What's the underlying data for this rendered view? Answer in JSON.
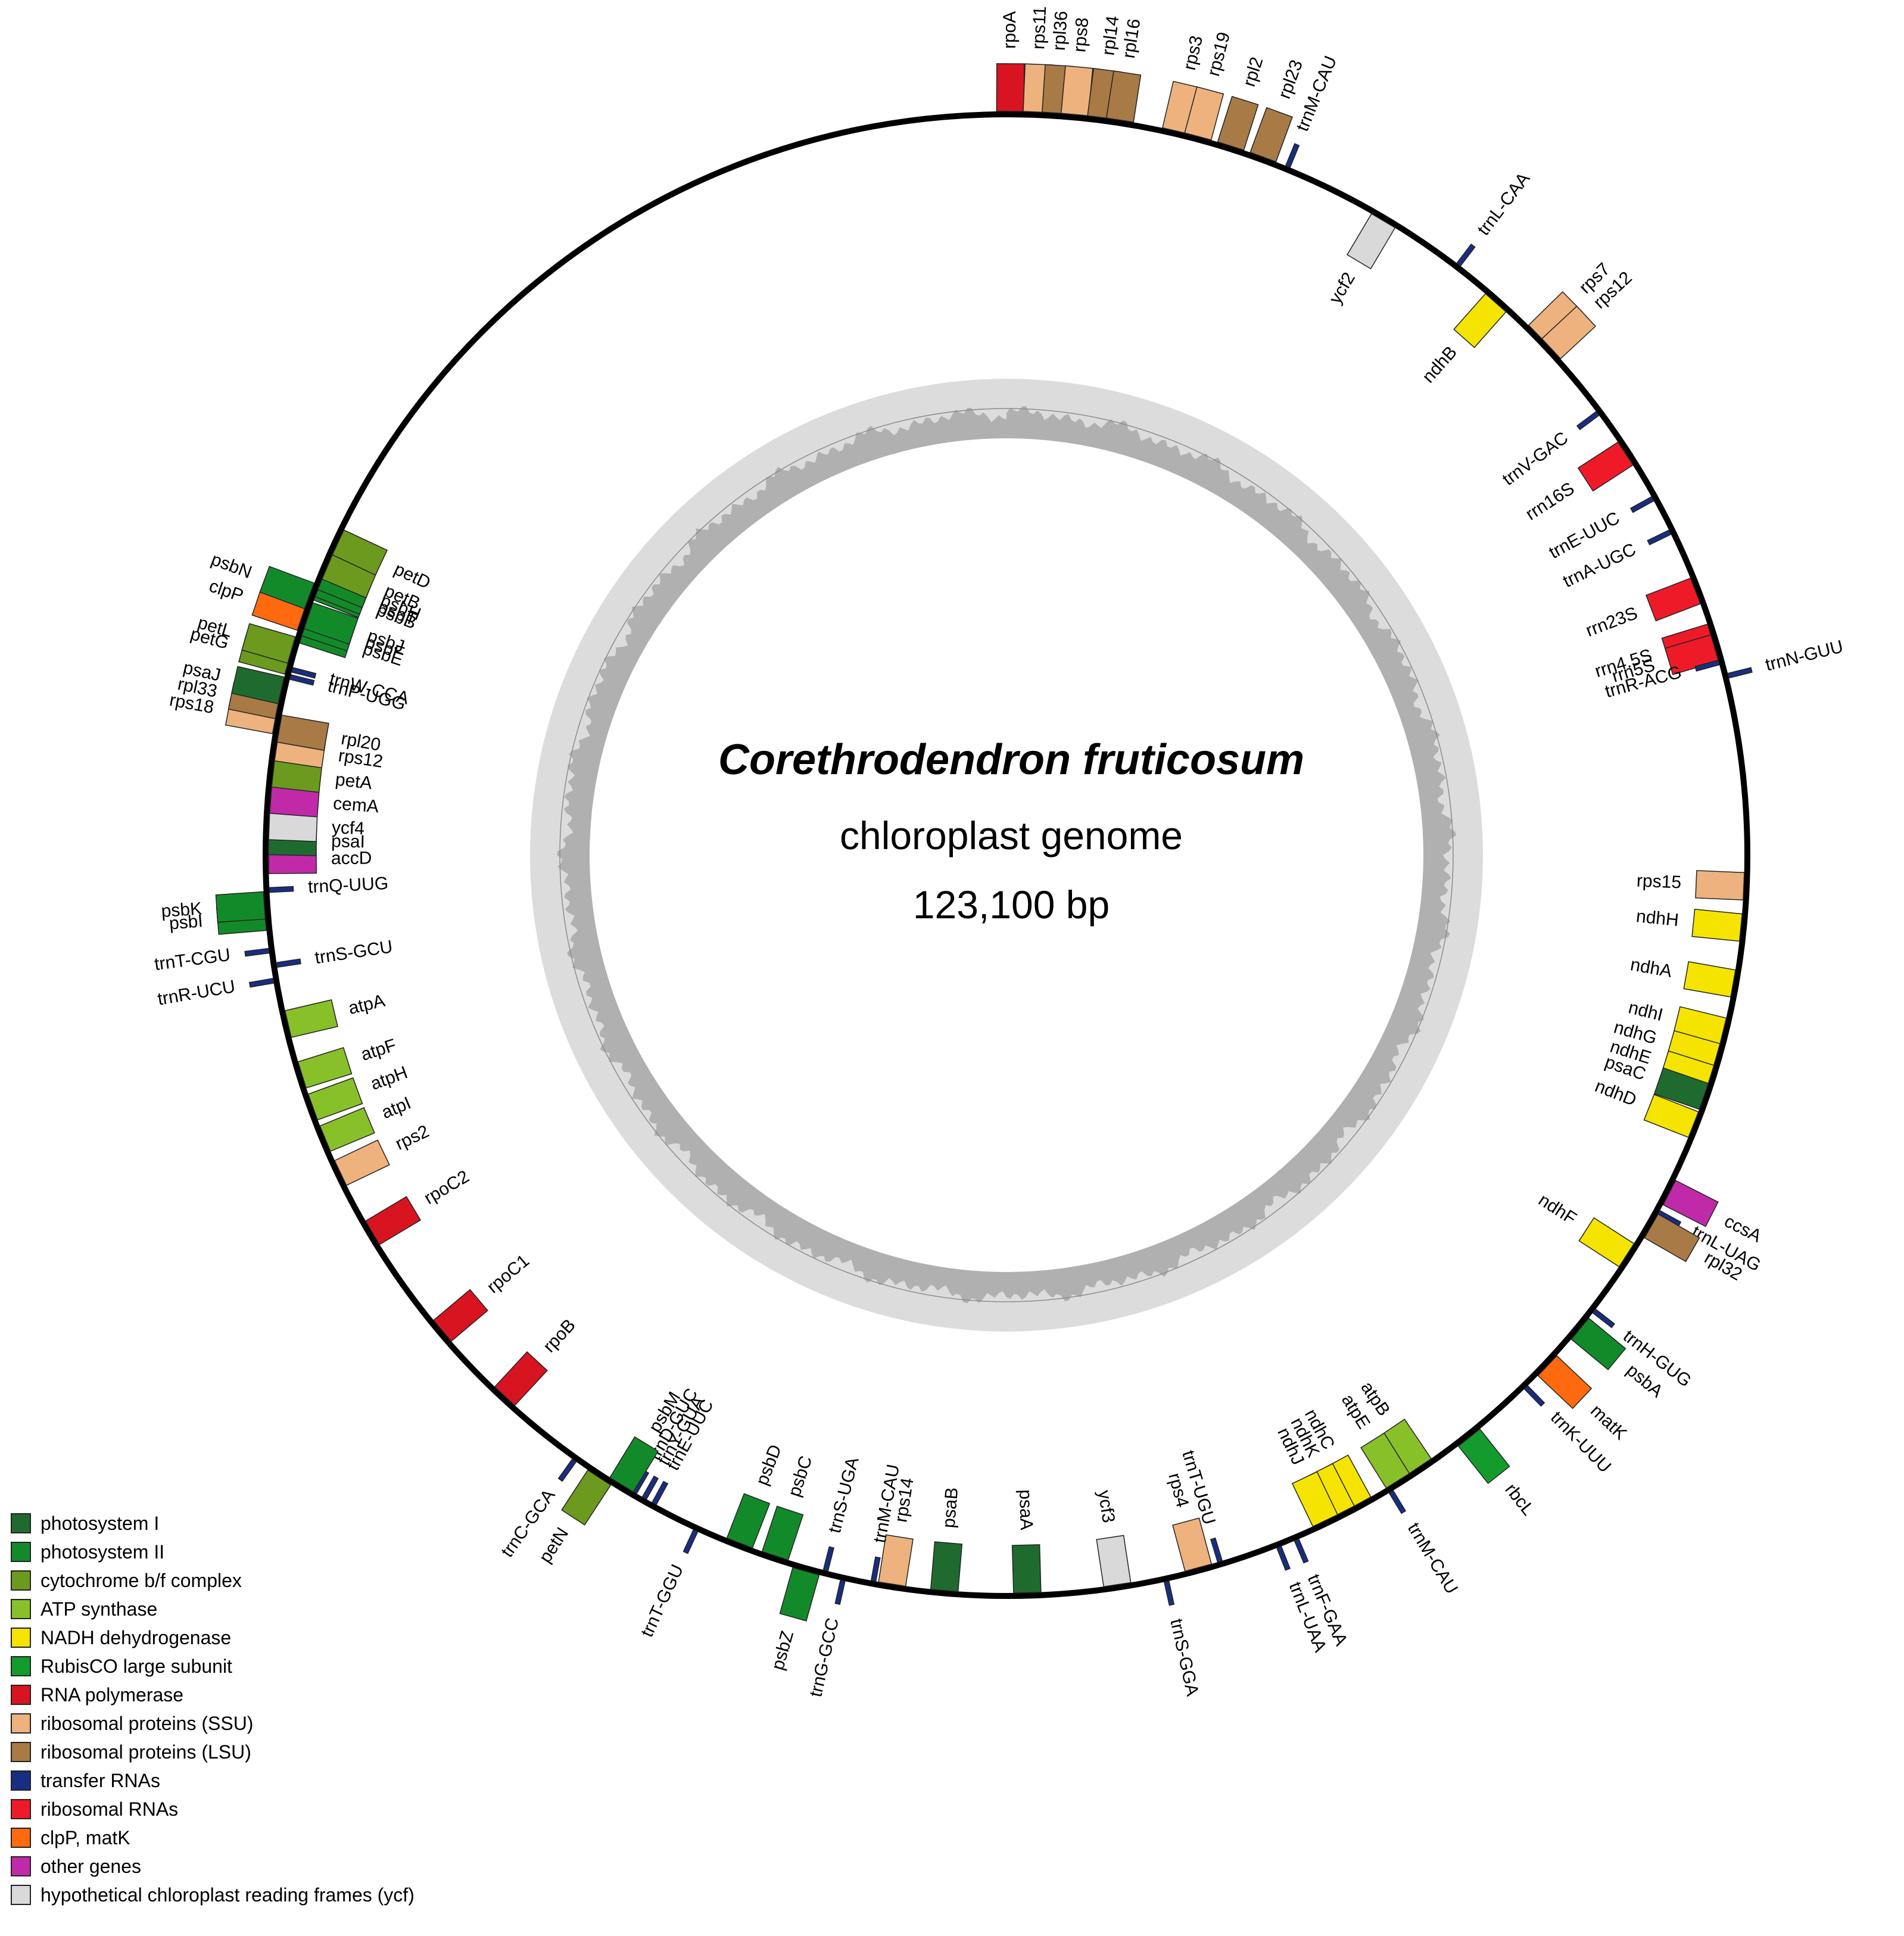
{
  "title": {
    "species": "Corethrodendron fruticosum",
    "subtitle": "chloroplast genome",
    "size": "123,100 bp"
  },
  "legend": [
    {
      "label": "photosystem I",
      "color": "#1f6b2f"
    },
    {
      "label": "photosystem II",
      "color": "#138a2a"
    },
    {
      "label": "cytochrome b/f complex",
      "color": "#6b9a1e"
    },
    {
      "label": "ATP synthase",
      "color": "#88c02a"
    },
    {
      "label": "NADH dehydrogenase",
      "color": "#f5e400"
    },
    {
      "label": "RubisCO large subunit",
      "color": "#139c2d"
    },
    {
      "label": "RNA polymerase",
      "color": "#d91421"
    },
    {
      "label": "ribosomal proteins (SSU)",
      "color": "#eeb27e"
    },
    {
      "label": "ribosomal proteins (LSU)",
      "color": "#a87a46"
    },
    {
      "label": "transfer RNAs",
      "color": "#172e82"
    },
    {
      "label": "ribosomal RNAs",
      "color": "#ef1a28"
    },
    {
      "label": "clpP, matK",
      "color": "#ff6a0e"
    },
    {
      "label": "other genes",
      "color": "#c02aa8"
    },
    {
      "label": "hypothetical chloroplast reading frames (ycf)",
      "color": "#d9d9d9"
    }
  ],
  "genes": [
    {
      "name": "rpoA",
      "cat": "RNA polymerase",
      "pos": 0.1,
      "dir": "out"
    },
    {
      "name": "rps11",
      "cat": "ribosomal proteins (SSU)",
      "pos": 0.8,
      "dir": "out"
    },
    {
      "name": "rpl36",
      "cat": "ribosomal proteins (LSU)",
      "pos": 1.3,
      "dir": "out"
    },
    {
      "name": "rps8",
      "cat": "ribosomal proteins (SSU)",
      "pos": 1.8,
      "dir": "out"
    },
    {
      "name": "rpl14",
      "cat": "ribosomal proteins (LSU)",
      "pos": 2.5,
      "dir": "out"
    },
    {
      "name": "rpl16",
      "cat": "ribosomal proteins (LSU)",
      "pos": 3.0,
      "dir": "out"
    },
    {
      "name": "rps3",
      "cat": "ribosomal proteins (SSU)",
      "pos": 4.5,
      "dir": "out"
    },
    {
      "name": "rps19",
      "cat": "ribosomal proteins (SSU)",
      "pos": 5.1,
      "dir": "out"
    },
    {
      "name": "rpl2",
      "cat": "ribosomal proteins (LSU)",
      "pos": 6.0,
      "dir": "out"
    },
    {
      "name": "rpl23",
      "cat": "ribosomal proteins (LSU)",
      "pos": 6.9,
      "dir": "out"
    },
    {
      "name": "trnM-CAU",
      "cat": "transfer RNAs",
      "pos": 7.6,
      "dir": "out"
    },
    {
      "name": "ycf2",
      "cat": "hypothetical chloroplast reading frames (ycf)",
      "pos": 10.5,
      "dir": "in"
    },
    {
      "name": "trnL-CAA",
      "cat": "transfer RNAs",
      "pos": 12.8,
      "dir": "out"
    },
    {
      "name": "ndhB",
      "cat": "NADH dehydrogenase",
      "pos": 14.2,
      "dir": "in"
    },
    {
      "name": "rps7",
      "cat": "ribosomal proteins (SSU)",
      "pos": 15.6,
      "dir": "out"
    },
    {
      "name": "rps12",
      "cat": "ribosomal proteins (SSU)",
      "pos": 16.1,
      "dir": "out"
    },
    {
      "name": "trnV-GAC",
      "cat": "transfer RNAs",
      "pos": 18.2,
      "dir": "in"
    },
    {
      "name": "rrn16S",
      "cat": "ribosomal RNAs",
      "pos": 19.5,
      "dir": "in"
    },
    {
      "name": "trnE-UUC",
      "cat": "transfer RNAs",
      "pos": 20.9,
      "dir": "in"
    },
    {
      "name": "trnA-UGC",
      "cat": "transfer RNAs",
      "pos": 21.9,
      "dir": "in"
    },
    {
      "name": "rrn23S",
      "cat": "ribosomal RNAs",
      "pos": 23.6,
      "dir": "in"
    },
    {
      "name": "rrn4.5S",
      "cat": "ribosomal RNAs",
      "pos": 24.9,
      "dir": "in"
    },
    {
      "name": "rrn5S",
      "cat": "ribosomal RNAs",
      "pos": 25.2,
      "dir": "in"
    },
    {
      "name": "trnR-ACG",
      "cat": "transfer RNAs",
      "pos": 25.6,
      "dir": "in"
    },
    {
      "name": "trnN-GUU",
      "cat": "transfer RNAs",
      "pos": 26.0,
      "dir": "out"
    },
    {
      "name": "rps15",
      "cat": "ribosomal proteins (SSU)",
      "pos": 31.6,
      "dir": "in"
    },
    {
      "name": "ndhH",
      "cat": "NADH dehydrogenase",
      "pos": 32.7,
      "dir": "in"
    },
    {
      "name": "ndhA",
      "cat": "NADH dehydrogenase",
      "pos": 34.2,
      "dir": "in"
    },
    {
      "name": "ndhI",
      "cat": "NADH dehydrogenase",
      "pos": 35.5,
      "dir": "in"
    },
    {
      "name": "ndhG",
      "cat": "NADH dehydrogenase",
      "pos": 36.2,
      "dir": "in"
    },
    {
      "name": "ndhE",
      "cat": "NADH dehydrogenase",
      "pos": 36.8,
      "dir": "in"
    },
    {
      "name": "psaC",
      "cat": "photosystem I",
      "pos": 37.3,
      "dir": "in"
    },
    {
      "name": "ndhD",
      "cat": "NADH dehydrogenase",
      "pos": 38.1,
      "dir": "in"
    },
    {
      "name": "ccsA",
      "cat": "other genes",
      "pos": 40.0,
      "dir": "out"
    },
    {
      "name": "trnL-UAG",
      "cat": "transfer RNAs",
      "pos": 40.6,
      "dir": "out"
    },
    {
      "name": "rpl32",
      "cat": "ribosomal proteins (LSU)",
      "pos": 41.0,
      "dir": "out"
    },
    {
      "name": "ndhF",
      "cat": "NADH dehydrogenase",
      "pos": 42.0,
      "dir": "in"
    },
    {
      "name": "trnH-GUG",
      "cat": "transfer RNAs",
      "pos": 43.7,
      "dir": "out"
    },
    {
      "name": "psbA",
      "cat": "photosystem II",
      "pos": 44.3,
      "dir": "out"
    },
    {
      "name": "matK",
      "cat": "clpP, matK",
      "pos": 45.6,
      "dir": "out"
    },
    {
      "name": "trnK-UUU",
      "cat": "transfer RNAs",
      "pos": 46.4,
      "dir": "out"
    },
    {
      "name": "rbcL",
      "cat": "RubisCO large subunit",
      "pos": 48.4,
      "dir": "out"
    },
    {
      "name": "atpB",
      "cat": "ATP synthase",
      "pos": 49.9,
      "dir": "in"
    },
    {
      "name": "atpE",
      "cat": "ATP synthase",
      "pos": 50.6,
      "dir": "in"
    },
    {
      "name": "trnM-CAU",
      "cat": "transfer RNAs",
      "pos": 50.9,
      "dir": "out"
    },
    {
      "name": "ndhC",
      "cat": "NADH dehydrogenase",
      "pos": 51.8,
      "dir": "in"
    },
    {
      "name": "ndhK",
      "cat": "NADH dehydrogenase",
      "pos": 52.3,
      "dir": "in"
    },
    {
      "name": "ndhJ",
      "cat": "NADH dehydrogenase",
      "pos": 52.8,
      "dir": "in"
    },
    {
      "name": "trnF-GAA",
      "cat": "transfer RNAs",
      "pos": 53.7,
      "dir": "out"
    },
    {
      "name": "trnL-UAA",
      "cat": "transfer RNAs",
      "pos": 54.2,
      "dir": "out"
    },
    {
      "name": "trnT-UGU",
      "cat": "transfer RNAs",
      "pos": 55.8,
      "dir": "in"
    },
    {
      "name": "rps4",
      "cat": "ribosomal proteins (SSU)",
      "pos": 56.4,
      "dir": "in"
    },
    {
      "name": "trnS-GGA",
      "cat": "transfer RNAs",
      "pos": 57.3,
      "dir": "out"
    },
    {
      "name": "ycf3",
      "cat": "hypothetical chloroplast reading frames (ycf)",
      "pos": 58.6,
      "dir": "in"
    },
    {
      "name": "psaA",
      "cat": "photosystem I",
      "pos": 61.0,
      "dir": "in"
    },
    {
      "name": "psaB",
      "cat": "photosystem I",
      "pos": 63.2,
      "dir": "in"
    },
    {
      "name": "rps14",
      "cat": "ribosomal proteins (SSU)",
      "pos": 64.6,
      "dir": "in"
    },
    {
      "name": "trnM-CAU",
      "cat": "transfer RNAs",
      "pos": 65.1,
      "dir": "in"
    },
    {
      "name": "trnG-GCC",
      "cat": "transfer RNAs",
      "pos": 65.9,
      "dir": "out"
    },
    {
      "name": "trnS-UGA",
      "cat": "transfer RNAs",
      "pos": 66.4,
      "dir": "in"
    },
    {
      "name": "psbZ",
      "cat": "photosystem II",
      "pos": 66.9,
      "dir": "out"
    },
    {
      "name": "psbC",
      "cat": "photosystem II",
      "pos": 67.8,
      "dir": "in"
    },
    {
      "name": "psbD",
      "cat": "photosystem II",
      "pos": 68.8,
      "dir": "in"
    },
    {
      "name": "trnT-GGU",
      "cat": "transfer RNAs",
      "pos": 70.0,
      "dir": "out"
    },
    {
      "name": "trnE-UUC",
      "cat": "transfer RNAs",
      "pos": 71.3,
      "dir": "in"
    },
    {
      "name": "trnY-GUA",
      "cat": "transfer RNAs",
      "pos": 71.6,
      "dir": "in"
    },
    {
      "name": "trnD-GUC",
      "cat": "transfer RNAs",
      "pos": 71.9,
      "dir": "in"
    },
    {
      "name": "psbM",
      "cat": "photosystem II",
      "pos": 72.3,
      "dir": "in"
    },
    {
      "name": "petN",
      "cat": "cytochrome b/f complex",
      "pos": 72.9,
      "dir": "out"
    },
    {
      "name": "trnC-GCA",
      "cat": "transfer RNAs",
      "pos": 73.7,
      "dir": "out"
    },
    {
      "name": "rpoB",
      "cat": "RNA polymerase",
      "pos": 76.2,
      "dir": "in"
    },
    {
      "name": "rpoC1",
      "cat": "RNA polymerase",
      "pos": 78.6,
      "dir": "in"
    },
    {
      "name": "rpoC2",
      "cat": "RNA polymerase",
      "pos": 81.8,
      "dir": "in"
    },
    {
      "name": "rps2",
      "cat": "ribosomal proteins (SSU)",
      "pos": 83.6,
      "dir": "in"
    },
    {
      "name": "atpI",
      "cat": "ATP synthase",
      "pos": 84.6,
      "dir": "in"
    },
    {
      "name": "atpH",
      "cat": "ATP synthase",
      "pos": 85.5,
      "dir": "in"
    },
    {
      "name": "atpF",
      "cat": "ATP synthase",
      "pos": 86.4,
      "dir": "in"
    },
    {
      "name": "atpA",
      "cat": "ATP synthase",
      "pos": 87.8,
      "dir": "in"
    },
    {
      "name": "trnR-UCU",
      "cat": "transfer RNAs",
      "pos": 89.0,
      "dir": "out"
    },
    {
      "name": "trnS-GCU",
      "cat": "transfer RNAs",
      "pos": 89.4,
      "dir": "in"
    },
    {
      "name": "trnT-CGU",
      "cat": "transfer RNAs",
      "pos": 89.8,
      "dir": "out"
    },
    {
      "name": "psbI",
      "cat": "photosystem II",
      "pos": 90.7,
      "dir": "out"
    },
    {
      "name": "psbK",
      "cat": "photosystem II",
      "pos": 91.0,
      "dir": "out"
    },
    {
      "name": "trnQ-UUG",
      "cat": "transfer RNAs",
      "pos": 91.4,
      "dir": "in"
    },
    {
      "name": "accD",
      "cat": "other genes",
      "pos": 92.2,
      "dir": "in"
    },
    {
      "name": "psaI",
      "cat": "photosystem I",
      "pos": 92.7,
      "dir": "in"
    },
    {
      "name": "ycf4",
      "cat": "hypothetical chloroplast reading frames (ycf)",
      "pos": 93.1,
      "dir": "in"
    },
    {
      "name": "cemA",
      "cat": "other genes",
      "pos": 93.8,
      "dir": "in"
    },
    {
      "name": "petA",
      "cat": "cytochrome b/f complex",
      "pos": 94.5,
      "dir": "in"
    },
    {
      "name": "rps12",
      "cat": "ribosomal proteins (SSU)",
      "pos": 95.2,
      "dir": "in"
    },
    {
      "name": "rpl20",
      "cat": "ribosomal proteins (LSU)",
      "pos": 95.7,
      "dir": "in"
    },
    {
      "name": "rps18",
      "cat": "ribosomal proteins (SSU)",
      "pos": 95.9,
      "dir": "out"
    },
    {
      "name": "rpl33",
      "cat": "ribosomal proteins (LSU)",
      "pos": 96.3,
      "dir": "out"
    },
    {
      "name": "psaJ",
      "cat": "photosystem I",
      "pos": 96.7,
      "dir": "out"
    },
    {
      "name": "trnP-UGG",
      "cat": "transfer RNAs",
      "pos": 97.1,
      "dir": "in"
    },
    {
      "name": "trnW-CCA",
      "cat": "transfer RNAs",
      "pos": 97.3,
      "dir": "in"
    },
    {
      "name": "petG",
      "cat": "cytochrome b/f complex",
      "pos": 97.5,
      "dir": "out"
    },
    {
      "name": "petL",
      "cat": "cytochrome b/f complex",
      "pos": 97.8,
      "dir": "out"
    },
    {
      "name": "psbE",
      "cat": "photosystem II",
      "pos": 98.4,
      "dir": "in"
    },
    {
      "name": "psbF",
      "cat": "photosystem II",
      "pos": 98.6,
      "dir": "in"
    },
    {
      "name": "clpP",
      "cat": "clpP, matK",
      "pos": 98.7,
      "dir": "out"
    },
    {
      "name": "psbJ",
      "cat": "photosystem II",
      "pos": 98.8,
      "dir": "in"
    },
    {
      "name": "psbB",
      "cat": "photosystem II",
      "pos": 99.6,
      "dir": "in"
    },
    {
      "name": "psbN",
      "cat": "photosystem II",
      "pos": 99.3,
      "dir": "out"
    },
    {
      "name": "psbT",
      "cat": "photosystem II",
      "pos": 99.7,
      "dir": "in"
    },
    {
      "name": "psbH",
      "cat": "photosystem II",
      "pos": 99.9,
      "dir": "in"
    },
    {
      "name": "petB",
      "cat": "cytochrome b/f complex",
      "pos": 100.2,
      "dir": "in"
    },
    {
      "name": "petD",
      "cat": "cytochrome b/f complex",
      "pos": 100.9,
      "dir": "in"
    }
  ]
}
